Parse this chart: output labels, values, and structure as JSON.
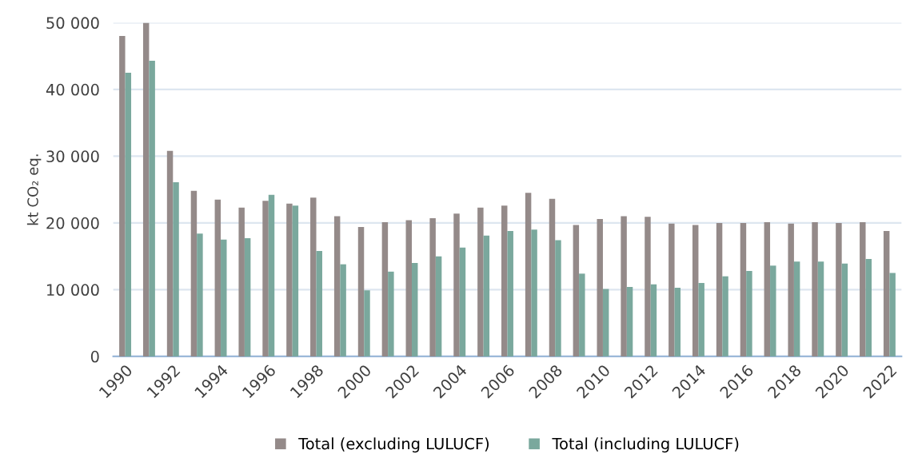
{
  "chart_data": {
    "type": "bar",
    "ylabel": "kt CO₂ eq.",
    "categories": [
      "1990",
      null,
      "1992",
      null,
      "1994",
      null,
      "1996",
      null,
      "1998",
      null,
      "2000",
      null,
      "2002",
      null,
      "2004",
      null,
      "2006",
      null,
      "2008",
      null,
      "2010",
      null,
      "2012",
      null,
      "2014",
      null,
      "2016",
      null,
      "2018",
      null,
      "2020",
      null,
      "2022"
    ],
    "series": [
      {
        "name": "Total (excluding LULUCF)",
        "color": "#948a89",
        "values": [
          48000,
          50000,
          30800,
          24800,
          23500,
          22300,
          23300,
          22900,
          23800,
          21000,
          19400,
          20100,
          20400,
          20700,
          21400,
          22300,
          22600,
          24500,
          23600,
          19700,
          20600,
          21000,
          20900,
          19900,
          19700,
          20000,
          20000,
          20100,
          19900,
          20100,
          20000,
          20100,
          18800
        ]
      },
      {
        "name": "Total (including LULUCF)",
        "color": "#7aa89d",
        "values": [
          42500,
          44300,
          26100,
          18400,
          17500,
          17700,
          24200,
          22600,
          15800,
          13800,
          9900,
          12700,
          14000,
          15000,
          16300,
          18100,
          18800,
          19000,
          17400,
          12400,
          10100,
          10400,
          10800,
          10300,
          11000,
          12000,
          12800,
          13600,
          14200,
          14200,
          13900,
          14600,
          12500
        ]
      }
    ],
    "ylim": [
      0,
      50000
    ],
    "yticks": [
      {
        "value": 0,
        "label": "0"
      },
      {
        "value": 10000,
        "label": "10 000"
      },
      {
        "value": 20000,
        "label": "20 000"
      },
      {
        "value": 30000,
        "label": "30 000"
      },
      {
        "value": 40000,
        "label": "40 000"
      },
      {
        "value": 50000,
        "label": "50 000"
      }
    ],
    "grid": "y",
    "legend": "bottom"
  }
}
